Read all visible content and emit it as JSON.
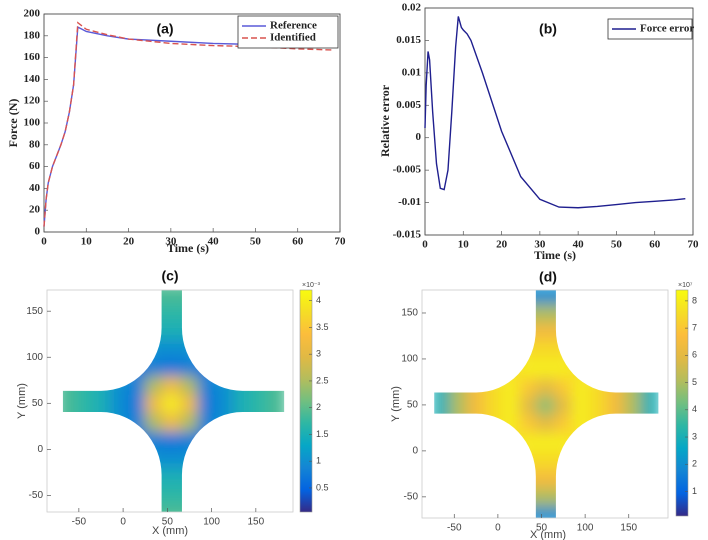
{
  "chart_data": [
    {
      "type": "line",
      "title": "(a)",
      "x_label": "Time (s)",
      "y_label": "Force (N)",
      "x": [
        0,
        0.5,
        1,
        2,
        3,
        4,
        5,
        6,
        7,
        8,
        9,
        10,
        15,
        20,
        30,
        40,
        50,
        60,
        68
      ],
      "series": [
        {
          "name": "Reference",
          "color": "#5a5ad8",
          "line_style": "solid",
          "values": [
            5,
            30,
            45,
            60,
            70,
            80,
            92,
            110,
            135,
            188,
            186,
            184,
            180,
            177,
            175,
            173,
            172,
            171,
            170
          ]
        },
        {
          "name": "Identified",
          "color": "#d9534f",
          "line_style": "dashed",
          "values": [
            5,
            30,
            45,
            60,
            70,
            80,
            92,
            110,
            135,
            192,
            189,
            186,
            181,
            177,
            173,
            171,
            170,
            168,
            167
          ]
        }
      ],
      "xlim": [
        0,
        70
      ],
      "xticks": [
        0,
        10,
        20,
        30,
        40,
        50,
        60,
        70
      ],
      "ylim": [
        0,
        200
      ],
      "yticks": [
        0,
        20,
        40,
        60,
        80,
        100,
        120,
        140,
        160,
        180,
        200
      ],
      "legend": "upper right"
    },
    {
      "type": "line",
      "title": "(b)",
      "x_label": "Time (s)",
      "y_label": "Relative error",
      "x": [
        0,
        0.3,
        0.8,
        1.2,
        2,
        3,
        4,
        5,
        6,
        7,
        8,
        8.7,
        9.5,
        10,
        11,
        12,
        15,
        20,
        25,
        30,
        35,
        40,
        45,
        50,
        55,
        60,
        65,
        68
      ],
      "series": [
        {
          "name": "Force error",
          "color": "#1f1f8f",
          "line_style": "solid",
          "values": [
            0.0015,
            0.008,
            0.0133,
            0.012,
            0.004,
            -0.004,
            -0.0078,
            -0.008,
            -0.005,
            0.004,
            0.014,
            0.0187,
            0.017,
            0.0166,
            0.016,
            0.015,
            0.01,
            0.001,
            -0.006,
            -0.0095,
            -0.0107,
            -0.0108,
            -0.0106,
            -0.0103,
            -0.01,
            -0.0098,
            -0.0096,
            -0.0094
          ]
        }
      ],
      "xlim": [
        0,
        70
      ],
      "xticks": [
        0,
        10,
        20,
        30,
        40,
        50,
        60,
        70
      ],
      "ylim": [
        -0.015,
        0.02
      ],
      "yticks": [
        -0.015,
        -0.01,
        -0.005,
        0,
        0.005,
        0.01,
        0.015,
        0.02
      ],
      "legend": "upper right"
    },
    {
      "type": "heatmap",
      "title": "(c)",
      "x_label": "X (mm)",
      "y_label": "Y (mm)",
      "x": [
        -65,
        -45,
        -25,
        -5,
        15,
        35,
        55,
        75,
        95,
        115,
        135,
        155,
        175
      ],
      "y": [
        -70,
        -50,
        -30,
        -10,
        10,
        30,
        50,
        70,
        90,
        110,
        130,
        150,
        170
      ],
      "values": [
        [
          null,
          null,
          null,
          null,
          null,
          1.9,
          1.9,
          1.9,
          null,
          null,
          null,
          null,
          null
        ],
        [
          null,
          null,
          null,
          null,
          null,
          1.7,
          1.7,
          1.7,
          null,
          null,
          null,
          null,
          null
        ],
        [
          null,
          null,
          null,
          null,
          null,
          1.5,
          1.5,
          1.5,
          null,
          null,
          null,
          null,
          null
        ],
        [
          null,
          null,
          null,
          null,
          null,
          1.0,
          1.0,
          1.0,
          null,
          null,
          null,
          null,
          null
        ],
        [
          null,
          null,
          null,
          null,
          0.7,
          0.8,
          0.7,
          0.8,
          0.7,
          null,
          null,
          null,
          null
        ],
        [
          1.9,
          1.7,
          1.5,
          1.0,
          0.8,
          2.5,
          3.2,
          2.5,
          0.8,
          1.0,
          1.5,
          1.7,
          1.9
        ],
        [
          1.9,
          1.7,
          1.5,
          1.0,
          0.7,
          3.2,
          4.0,
          3.2,
          0.7,
          1.0,
          1.5,
          1.7,
          1.9
        ],
        [
          1.9,
          1.7,
          1.5,
          1.0,
          0.8,
          2.5,
          3.2,
          2.5,
          0.8,
          1.0,
          1.5,
          1.7,
          1.9
        ],
        [
          null,
          null,
          null,
          null,
          0.7,
          0.8,
          0.7,
          0.8,
          0.7,
          null,
          null,
          null,
          null
        ],
        [
          null,
          null,
          null,
          null,
          null,
          1.0,
          1.0,
          1.0,
          null,
          null,
          null,
          null,
          null
        ],
        [
          null,
          null,
          null,
          null,
          null,
          1.5,
          1.5,
          1.5,
          null,
          null,
          null,
          null,
          null
        ],
        [
          null,
          null,
          null,
          null,
          null,
          1.7,
          1.7,
          1.7,
          null,
          null,
          null,
          null,
          null
        ],
        [
          null,
          null,
          null,
          null,
          null,
          1.9,
          1.9,
          1.9,
          null,
          null,
          null,
          null,
          null
        ]
      ],
      "xlim": [
        -86,
        192
      ],
      "xticks": [
        -50,
        0,
        50,
        100,
        150
      ],
      "ylim": [
        -68,
        173
      ],
      "yticks": [
        -50,
        0,
        50,
        100,
        150
      ],
      "colormap": "parula",
      "colorbar": {
        "lim": [
          0.05,
          4.2
        ],
        "ticks": [
          0.5,
          1,
          1.5,
          2,
          2.5,
          3,
          3.5,
          4
        ],
        "scale_label": "×10⁻³"
      }
    },
    {
      "type": "heatmap",
      "title": "(d)",
      "x_label": "X (mm)",
      "y_label": "Y (mm)",
      "x": [
        -65,
        -45,
        -25,
        -5,
        15,
        35,
        55,
        75,
        95,
        115,
        135,
        155,
        175
      ],
      "y": [
        -70,
        -50,
        -30,
        -10,
        10,
        30,
        50,
        70,
        90,
        110,
        130,
        150,
        170
      ],
      "values": [
        [
          null,
          null,
          null,
          null,
          null,
          2.0,
          2.0,
          2.0,
          null,
          null,
          null,
          null,
          null
        ],
        [
          null,
          null,
          null,
          null,
          null,
          5.0,
          5.0,
          5.0,
          null,
          null,
          null,
          null,
          null
        ],
        [
          null,
          null,
          null,
          null,
          null,
          6.5,
          6.5,
          6.5,
          null,
          null,
          null,
          null,
          null
        ],
        [
          null,
          null,
          null,
          null,
          null,
          7.5,
          7.5,
          7.5,
          null,
          null,
          null,
          null,
          null
        ],
        [
          null,
          null,
          null,
          null,
          7.5,
          8.0,
          8.0,
          8.0,
          7.5,
          null,
          null,
          null,
          null
        ],
        [
          3.0,
          5.0,
          6.5,
          7.5,
          8.0,
          7.0,
          6.0,
          7.0,
          8.0,
          7.5,
          6.5,
          5.0,
          3.0
        ],
        [
          3.0,
          5.0,
          6.5,
          7.5,
          8.0,
          6.0,
          4.5,
          6.0,
          8.0,
          7.5,
          6.5,
          5.0,
          3.0
        ],
        [
          3.0,
          5.0,
          6.5,
          7.5,
          8.0,
          7.0,
          6.0,
          7.0,
          8.0,
          7.5,
          6.5,
          5.0,
          3.0
        ],
        [
          null,
          null,
          null,
          null,
          7.5,
          8.0,
          8.0,
          8.0,
          7.5,
          null,
          null,
          null,
          null
        ],
        [
          null,
          null,
          null,
          null,
          null,
          7.5,
          7.5,
          7.5,
          null,
          null,
          null,
          null,
          null
        ],
        [
          null,
          null,
          null,
          null,
          null,
          6.5,
          6.5,
          6.5,
          null,
          null,
          null,
          null,
          null
        ],
        [
          null,
          null,
          null,
          null,
          null,
          5.0,
          5.0,
          5.0,
          null,
          null,
          null,
          null,
          null
        ],
        [
          null,
          null,
          null,
          null,
          null,
          2.0,
          2.0,
          2.0,
          null,
          null,
          null,
          null,
          null
        ]
      ],
      "xlim": [
        -87,
        195
      ],
      "xticks": [
        -50,
        0,
        50,
        100,
        150
      ],
      "ylim": [
        -73,
        175
      ],
      "yticks": [
        -50,
        0,
        50,
        100,
        150
      ],
      "colormap": "parula",
      "colorbar": {
        "lim": [
          0.1,
          8.4
        ],
        "ticks": [
          1,
          2,
          3,
          4,
          5,
          6,
          7,
          8
        ],
        "scale_label": "×10⁷"
      }
    }
  ]
}
